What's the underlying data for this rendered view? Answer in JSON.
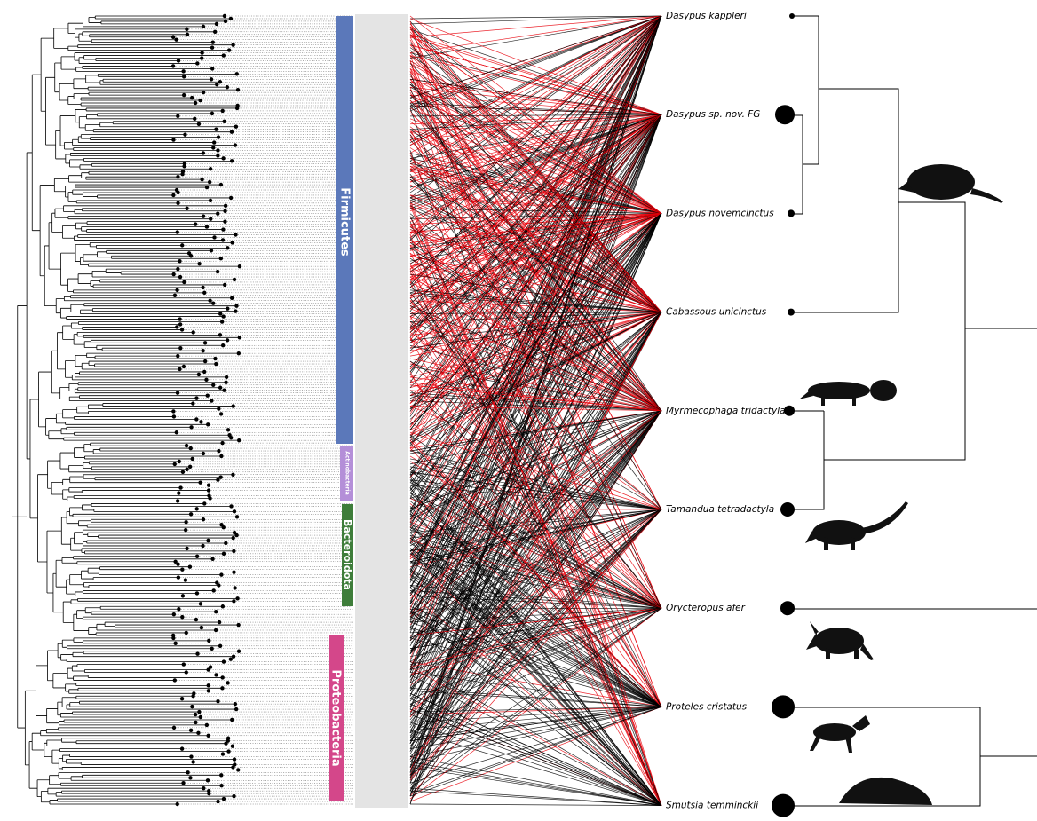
{
  "phyla": [
    "Firmicutes",
    "Actinobacteria",
    "Bacteroidota",
    "Proteobacteria"
  ],
  "hosts": [
    "Dasypus kappleri",
    "Dasypus sp. nov. FG",
    "Dasypus novemcinctus",
    "Cabassous unicinctus",
    "Myrmecophaga tridactyla",
    "Tamandua tetradactyla",
    "Orycteropus afer",
    "Proteles cristatus",
    "Smutsia temminckii"
  ]
}
